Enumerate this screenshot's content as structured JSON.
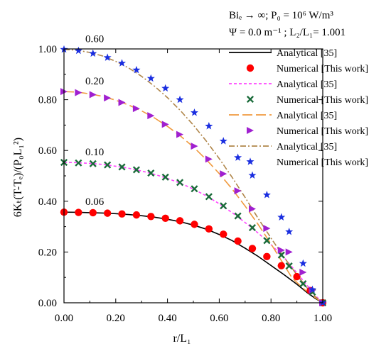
{
  "chart_data": {
    "type": "line",
    "header_line1": "Biₑ → ∞; P₀ = 10⁶ W/m³",
    "header_line2": "Ψ = 0.0 m⁻¹ ; L₂/L₁= 1.001",
    "xlabel": "r/L₁",
    "ylabel": "6Kₜ(T-Tₑ)/(P₀L₁²)",
    "xlim": [
      0,
      1.0
    ],
    "ylim": [
      0,
      1.0
    ],
    "x_ticks": [
      "0.00",
      "0.20",
      "0.40",
      "0.60",
      "0.80",
      "1.00"
    ],
    "y_ticks": [
      "0.00",
      "0.20",
      "0.40",
      "0.60",
      "0.80",
      "1.00"
    ],
    "grid": false,
    "legend_position": "top-right",
    "colors": {
      "c006": "#000000",
      "c006_marker": "#ff0000",
      "c010": "#ff44ff",
      "c010_marker": "#1a6b3a",
      "c020": "#f09a3e",
      "c020_marker": "#a020d0",
      "c060": "#b0864a",
      "c060_marker": "#1a2ee0"
    },
    "series": [
      {
        "label": "0.06",
        "analytical_name": "Analytical [35]",
        "numerical_name": "Numerical [This work]",
        "line_style": "solid",
        "marker": "circle",
        "analytical": {
          "x": [
            0,
            0.05,
            0.1,
            0.15,
            0.2,
            0.25,
            0.3,
            0.35,
            0.4,
            0.45,
            0.5,
            0.55,
            0.6,
            0.65,
            0.7,
            0.75,
            0.8,
            0.85,
            0.9,
            0.94,
            0.97,
            1.0
          ],
          "y": [
            0.357,
            0.3565,
            0.355,
            0.3535,
            0.351,
            0.3475,
            0.343,
            0.337,
            0.329,
            0.319,
            0.306,
            0.29,
            0.269,
            0.245,
            0.215,
            0.183,
            0.147,
            0.111,
            0.073,
            0.04,
            0.018,
            0.0
          ]
        },
        "numerical": {
          "x": [
            0,
            0.056,
            0.112,
            0.168,
            0.224,
            0.28,
            0.336,
            0.392,
            0.448,
            0.504,
            0.56,
            0.616,
            0.672,
            0.728,
            0.784,
            0.84,
            0.9,
            0.952,
            1.0
          ],
          "y": [
            0.357,
            0.356,
            0.355,
            0.353,
            0.35,
            0.346,
            0.34,
            0.333,
            0.323,
            0.309,
            0.291,
            0.27,
            0.243,
            0.214,
            0.182,
            0.146,
            0.103,
            0.048,
            0.0
          ]
        }
      },
      {
        "label": "0.10",
        "analytical_name": "Analytical [35]",
        "numerical_name": "Numerical [This work]",
        "line_style": "dash",
        "marker": "x",
        "analytical": {
          "x": [
            0,
            0.05,
            0.1,
            0.15,
            0.2,
            0.25,
            0.3,
            0.35,
            0.4,
            0.45,
            0.5,
            0.55,
            0.6,
            0.65,
            0.7,
            0.75,
            0.8,
            0.85,
            0.9,
            0.94,
            0.97,
            1.0
          ],
          "y": [
            0.553,
            0.552,
            0.549,
            0.545,
            0.538,
            0.53,
            0.519,
            0.506,
            0.49,
            0.471,
            0.448,
            0.421,
            0.39,
            0.355,
            0.316,
            0.275,
            0.229,
            0.179,
            0.118,
            0.068,
            0.03,
            0.0
          ]
        },
        "numerical": {
          "x": [
            0,
            0.056,
            0.112,
            0.168,
            0.224,
            0.28,
            0.336,
            0.392,
            0.448,
            0.504,
            0.56,
            0.616,
            0.672,
            0.728,
            0.784,
            0.84,
            0.87,
            0.924,
            0.96,
            1.0
          ],
          "y": [
            0.553,
            0.551,
            0.548,
            0.543,
            0.535,
            0.524,
            0.511,
            0.495,
            0.474,
            0.449,
            0.418,
            0.382,
            0.342,
            0.296,
            0.245,
            0.188,
            0.145,
            0.075,
            0.042,
            0.0
          ]
        }
      },
      {
        "label": "0.20",
        "analytical_name": "Analytical [35]",
        "numerical_name": "Numerical [This work]",
        "line_style": "longdash",
        "marker": "triangle-right",
        "analytical": {
          "x": [
            0,
            0.05,
            0.1,
            0.15,
            0.2,
            0.25,
            0.3,
            0.35,
            0.4,
            0.45,
            0.5,
            0.55,
            0.6,
            0.65,
            0.7,
            0.75,
            0.8,
            0.85,
            0.88,
            0.92,
            0.96,
            1.0
          ],
          "y": [
            0.832,
            0.83,
            0.823,
            0.813,
            0.798,
            0.779,
            0.756,
            0.728,
            0.695,
            0.657,
            0.614,
            0.564,
            0.509,
            0.448,
            0.381,
            0.309,
            0.232,
            0.15,
            0.1,
            0.06,
            0.028,
            0.0
          ]
        },
        "numerical": {
          "x": [
            0,
            0.056,
            0.112,
            0.168,
            0.224,
            0.28,
            0.336,
            0.392,
            0.448,
            0.504,
            0.56,
            0.616,
            0.672,
            0.728,
            0.784,
            0.84,
            0.87,
            0.924,
            0.96,
            1.0
          ],
          "y": [
            0.832,
            0.828,
            0.82,
            0.807,
            0.789,
            0.765,
            0.737,
            0.703,
            0.663,
            0.617,
            0.566,
            0.508,
            0.441,
            0.37,
            0.293,
            0.207,
            0.2,
            0.12,
            0.05,
            0.0
          ]
        }
      },
      {
        "label": "0.60",
        "analytical_name": "Analytical [35]",
        "numerical_name": "Numerical [This work]",
        "line_style": "dashdot",
        "marker": "star",
        "analytical": {
          "x": [
            0,
            0.05,
            0.1,
            0.15,
            0.2,
            0.25,
            0.3,
            0.35,
            0.4,
            0.45,
            0.5,
            0.55,
            0.6,
            0.65,
            0.7,
            0.75,
            0.8,
            0.85,
            0.9,
            0.94,
            0.97,
            1.0
          ],
          "y": [
            0.998,
            0.995,
            0.986,
            0.972,
            0.951,
            0.925,
            0.892,
            0.853,
            0.808,
            0.757,
            0.7,
            0.637,
            0.568,
            0.494,
            0.415,
            0.333,
            0.255,
            0.18,
            0.11,
            0.058,
            0.025,
            0.0
          ]
        },
        "numerical": {
          "x": [
            0,
            0.056,
            0.112,
            0.168,
            0.224,
            0.28,
            0.336,
            0.392,
            0.448,
            0.504,
            0.56,
            0.616,
            0.672,
            0.728,
            0.784,
            0.84,
            0.87,
            0.924,
            0.96,
            1.0
          ],
          "y": [
            0.998,
            0.993,
            0.982,
            0.966,
            0.944,
            0.917,
            0.884,
            0.845,
            0.8,
            0.749,
            0.696,
            0.637,
            0.572,
            0.502,
            0.425,
            0.337,
            0.28,
            0.155,
            0.052,
            0.0
          ]
        }
      }
    ]
  }
}
